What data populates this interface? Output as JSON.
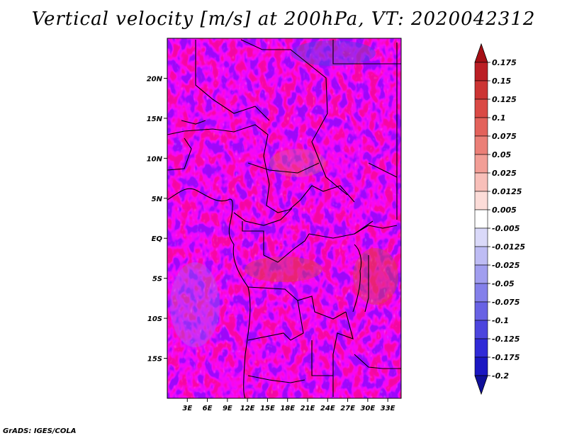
{
  "title": "Vertical velocity [m/s] at 200hPa, VT: 2020042312",
  "footer": "GrADS: IGES/COLA",
  "chart_data": {
    "type": "heatmap",
    "variable": "Vertical velocity",
    "units": "m/s",
    "level": "200hPa",
    "valid_time": "2020042312",
    "lon_range": [
      0,
      35
    ],
    "lat_range": [
      -20,
      25
    ],
    "x_ticks": [
      "3E",
      "6E",
      "9E",
      "12E",
      "15E",
      "18E",
      "21E",
      "24E",
      "27E",
      "30E",
      "33E"
    ],
    "x_tick_values": [
      3,
      6,
      9,
      12,
      15,
      18,
      21,
      24,
      27,
      30,
      33
    ],
    "y_ticks": [
      "20N",
      "15N",
      "10N",
      "5N",
      "EQ",
      "5S",
      "10S",
      "15S"
    ],
    "y_tick_values": [
      20,
      15,
      10,
      5,
      0,
      -5,
      -10,
      -15
    ],
    "colorbar": {
      "labels": [
        "0.175",
        "0.15",
        "0.125",
        "0.1",
        "0.075",
        "0.05",
        "0.025",
        "0.0125",
        "0.005",
        "-0.005",
        "-0.0125",
        "-0.025",
        "-0.05",
        "-0.075",
        "-0.1",
        "-0.125",
        "-0.175",
        "-0.2"
      ],
      "colors": [
        "#a50f15",
        "#bb1e24",
        "#cc3433",
        "#da4a45",
        "#e3625b",
        "#eb7f77",
        "#f29e96",
        "#f8bfb9",
        "#fcdcd8",
        "#ffffff",
        "#dad9f9",
        "#bebcf4",
        "#a19eef",
        "#8480ea",
        "#6862e4",
        "#4c45de",
        "#302ad7",
        "#1b17c2",
        "#10109a"
      ]
    },
    "field_description_colors": {
      "positive": "#e05a4f",
      "negative": "#6b66e6",
      "zero": "#ffffff"
    }
  }
}
